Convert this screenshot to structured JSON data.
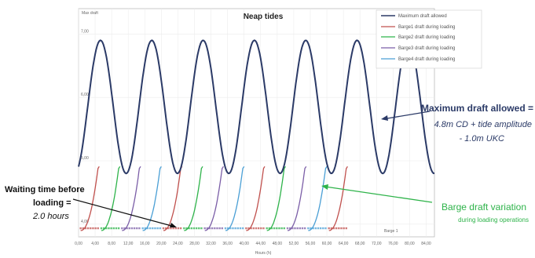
{
  "chart_data": {
    "type": "line",
    "title": "Neap tides",
    "ylabel": "Max draft",
    "xlabel": "Hours (h)",
    "grid": true,
    "legend_position": "top-right",
    "x_ticks": [
      "0,00",
      "4,00",
      "8,00",
      "12,00",
      "16,00",
      "20,00",
      "24,00",
      "28,00",
      "32,00",
      "36,00",
      "40,00",
      "44,00",
      "48,00",
      "52,00",
      "56,00",
      "60,00",
      "64,00",
      "68,00",
      "72,00",
      "76,00",
      "80,00",
      "84,00"
    ],
    "y_ticks": [
      "7,00",
      "6,00",
      "5,00",
      "4,00"
    ],
    "ylim": [
      3.8,
      7.4
    ],
    "xlim": [
      0,
      86
    ],
    "series": [
      {
        "name": "Maximum draft allowed",
        "color": "#2b3a67"
      },
      {
        "name": "Barge1 draft during loading",
        "color": "#c0504d"
      },
      {
        "name": "Barge2 draft during loading",
        "color": "#2eb34a"
      },
      {
        "name": "Barge3 draft during loading",
        "color": "#7b5ea7"
      },
      {
        "name": "Barge4 draft during loading",
        "color": "#4a9fd5"
      }
    ],
    "tide": {
      "mean": 5.85,
      "amplitude": 1.05,
      "period_h": 12.4,
      "peaks_h": [
        5.3,
        17.7,
        30.1,
        42.5,
        54.9,
        67.3
      ]
    },
    "barge_cycles": [
      {
        "barge": 1,
        "start_h": 0.5,
        "end_h": 5.0
      },
      {
        "barge": 2,
        "start_h": 5.5,
        "end_h": 10.0
      },
      {
        "barge": 3,
        "start_h": 10.5,
        "end_h": 15.0
      },
      {
        "barge": 4,
        "start_h": 15.5,
        "end_h": 20.0
      },
      {
        "barge": 1,
        "start_h": 20.5,
        "end_h": 25.0
      },
      {
        "barge": 2,
        "start_h": 25.5,
        "end_h": 30.0
      },
      {
        "barge": 3,
        "start_h": 30.5,
        "end_h": 35.0
      },
      {
        "barge": 4,
        "start_h": 35.5,
        "end_h": 40.0
      },
      {
        "barge": 1,
        "start_h": 40.5,
        "end_h": 45.0
      },
      {
        "barge": 2,
        "start_h": 45.5,
        "end_h": 50.0
      },
      {
        "barge": 3,
        "start_h": 50.5,
        "end_h": 55.0
      },
      {
        "barge": 4,
        "start_h": 55.5,
        "end_h": 60.0
      },
      {
        "barge": 1,
        "start_h": 60.5,
        "end_h": 65.0
      }
    ],
    "barge_draft_range": [
      3.9,
      5.05
    ],
    "bottom_marker_label": "Barge 1",
    "annotations": {
      "max_draft": {
        "title": "Maximum draft allowed =",
        "line1": "4.8m CD + tide amplitude",
        "line2": "- 1.0m UKC"
      },
      "waiting": {
        "title_line1": "Waiting time before",
        "title_line2": "loading =",
        "value": "2.0 hours"
      },
      "barge_var": {
        "title": "Barge draft variation",
        "subtitle": "during loading operations"
      }
    }
  }
}
